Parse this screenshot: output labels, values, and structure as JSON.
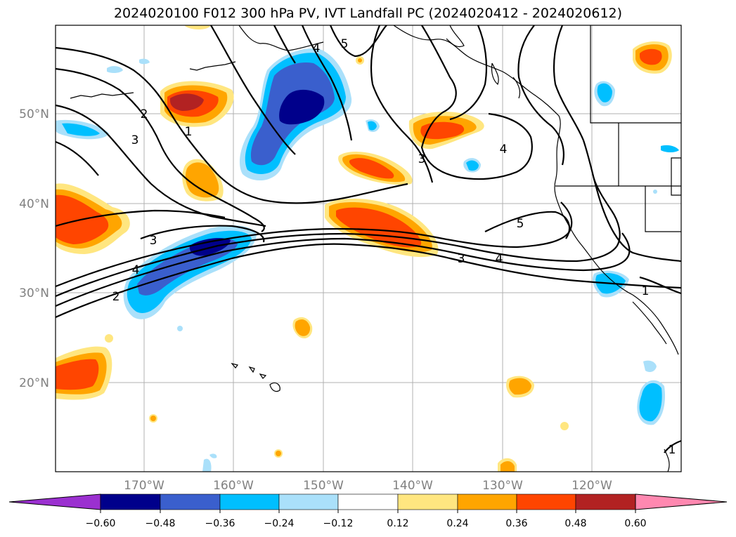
{
  "title": "2024020100 F012 300 hPa PV, IVT Landfall PC (2024020412 - 2024020612)",
  "lat_labels": [
    "50°N",
    "40°N",
    "30°N",
    "20°N"
  ],
  "lon_labels": [
    "170°W",
    "160°W",
    "150°W",
    "140°W",
    "130°W",
    "120°W"
  ],
  "colorbar": {
    "colors": [
      "#9b30d0",
      "#00008b",
      "#3a5fcd",
      "#00bfff",
      "#aae0fa",
      "#ffffff",
      "#ffe680",
      "#ffa500",
      "#ff4500",
      "#b22222",
      "#ff88b0"
    ],
    "tick_labels": [
      "−0.60",
      "−0.48",
      "−0.36",
      "−0.24",
      "−0.12",
      "0.12",
      "0.24",
      "0.36",
      "0.48",
      "0.60"
    ]
  },
  "contour_labels": [
    "5",
    "4",
    "2",
    "1",
    "3",
    "3",
    "4",
    "5",
    "3",
    "4",
    "4",
    "2",
    "3",
    "1",
    "1"
  ],
  "shading": {
    "levels": [
      0.12,
      0.24,
      0.36,
      0.48,
      0.6
    ],
    "positive_colors": [
      "#ffe680",
      "#ffa500",
      "#ff4500",
      "#b22222"
    ],
    "negative_colors": [
      "#aae0fa",
      "#00bfff",
      "#3a5fcd",
      "#00008b"
    ]
  }
}
